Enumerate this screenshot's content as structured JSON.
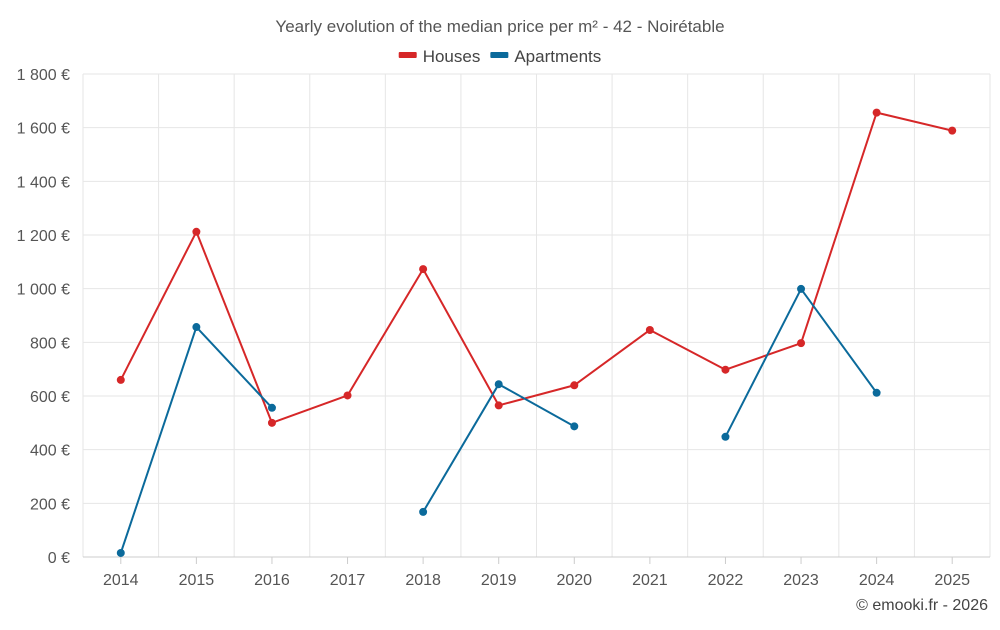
{
  "chart_data": {
    "type": "line",
    "title": "Yearly evolution of the median price per m² - 42 - Noirétable",
    "categories": [
      "2014",
      "2015",
      "2016",
      "2017",
      "2018",
      "2019",
      "2020",
      "2021",
      "2022",
      "2023",
      "2024",
      "2025"
    ],
    "series": [
      {
        "name": "Houses",
        "color": "#d62728",
        "values": [
          660,
          1212,
          500,
          602,
          1073,
          565,
          640,
          846,
          698,
          797,
          1656,
          1589
        ]
      },
      {
        "name": "Apartments",
        "color": "#0b6a9b",
        "values": [
          15,
          857,
          556,
          null,
          168,
          644,
          487,
          null,
          448,
          999,
          612,
          null
        ]
      }
    ],
    "ylim": [
      0,
      1800
    ],
    "yticks": [
      0,
      200,
      400,
      600,
      800,
      1000,
      1200,
      1400,
      1600,
      1800
    ],
    "ytick_labels": [
      "0 €",
      "200 €",
      "400 €",
      "600 €",
      "800 €",
      "1 000 €",
      "1 200 €",
      "1 400 €",
      "1 600 €",
      "1 800 €"
    ],
    "xlabel": "",
    "ylabel": "",
    "legend": "top-center",
    "grid": true
  },
  "credit": "© emooki.fr - 2026"
}
